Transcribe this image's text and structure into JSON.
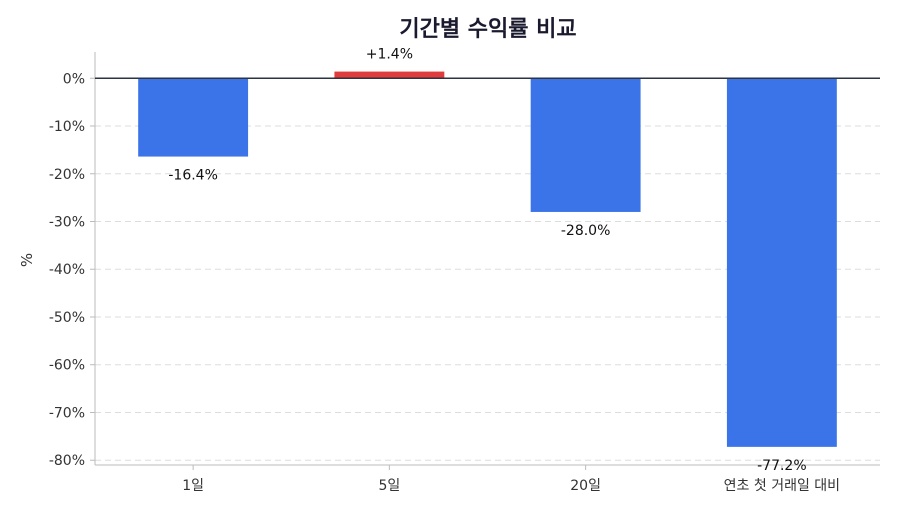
{
  "chart_data": {
    "type": "bar",
    "title": "기간별 수익률 비교",
    "xlabel": "",
    "ylabel": "%",
    "categories": [
      "1일",
      "5일",
      "20일",
      "연초 첫 거래일 대비"
    ],
    "values": [
      -16.4,
      1.4,
      -28.0,
      -77.2
    ],
    "value_labels": [
      "-16.4%",
      "+1.4%",
      "-28.0%",
      "-77.2%"
    ],
    "ylim": [
      -81,
      5.5
    ],
    "yticks": [
      0,
      -10,
      -20,
      -30,
      -40,
      -50,
      -60,
      -70,
      -80
    ],
    "ytick_labels": [
      "0%",
      "-10%",
      "-20%",
      "-30%",
      "-40%",
      "-50%",
      "-60%",
      "-70%",
      "-80%"
    ],
    "grid": true,
    "legend": "none",
    "colors": {
      "negative": "#3b73e8",
      "positive": "#e03c3c",
      "zero_line": "#2b3440",
      "grid": "#dddddd",
      "title": "#1a1a2e"
    }
  }
}
